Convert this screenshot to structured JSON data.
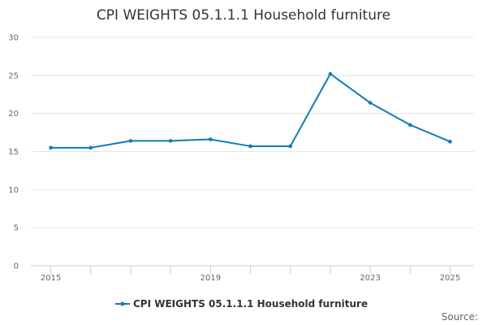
{
  "chart_data": {
    "type": "line",
    "title": "CPI WEIGHTS 05.1.1.1 Household furniture",
    "xlabel": "",
    "ylabel": "",
    "x": [
      2015,
      2016,
      2017,
      2018,
      2019,
      2020,
      2021,
      2022,
      2023,
      2024,
      2025
    ],
    "x_tick_labels": [
      "2015",
      "2019",
      "2023",
      "2025"
    ],
    "xlim": [
      2014.5,
      2025.6
    ],
    "ylim": [
      0,
      30
    ],
    "y_ticks": [
      0,
      5,
      10,
      15,
      20,
      25,
      30
    ],
    "grid": true,
    "legend_position": "bottom",
    "series": [
      {
        "name": "CPI WEIGHTS 05.1.1.1 Household furniture",
        "color": "#0f7bbd",
        "values": [
          15.5,
          15.5,
          16.4,
          16.4,
          16.6,
          15.7,
          15.7,
          25.2,
          21.4,
          18.5,
          16.3
        ]
      }
    ],
    "source": "Source:"
  }
}
